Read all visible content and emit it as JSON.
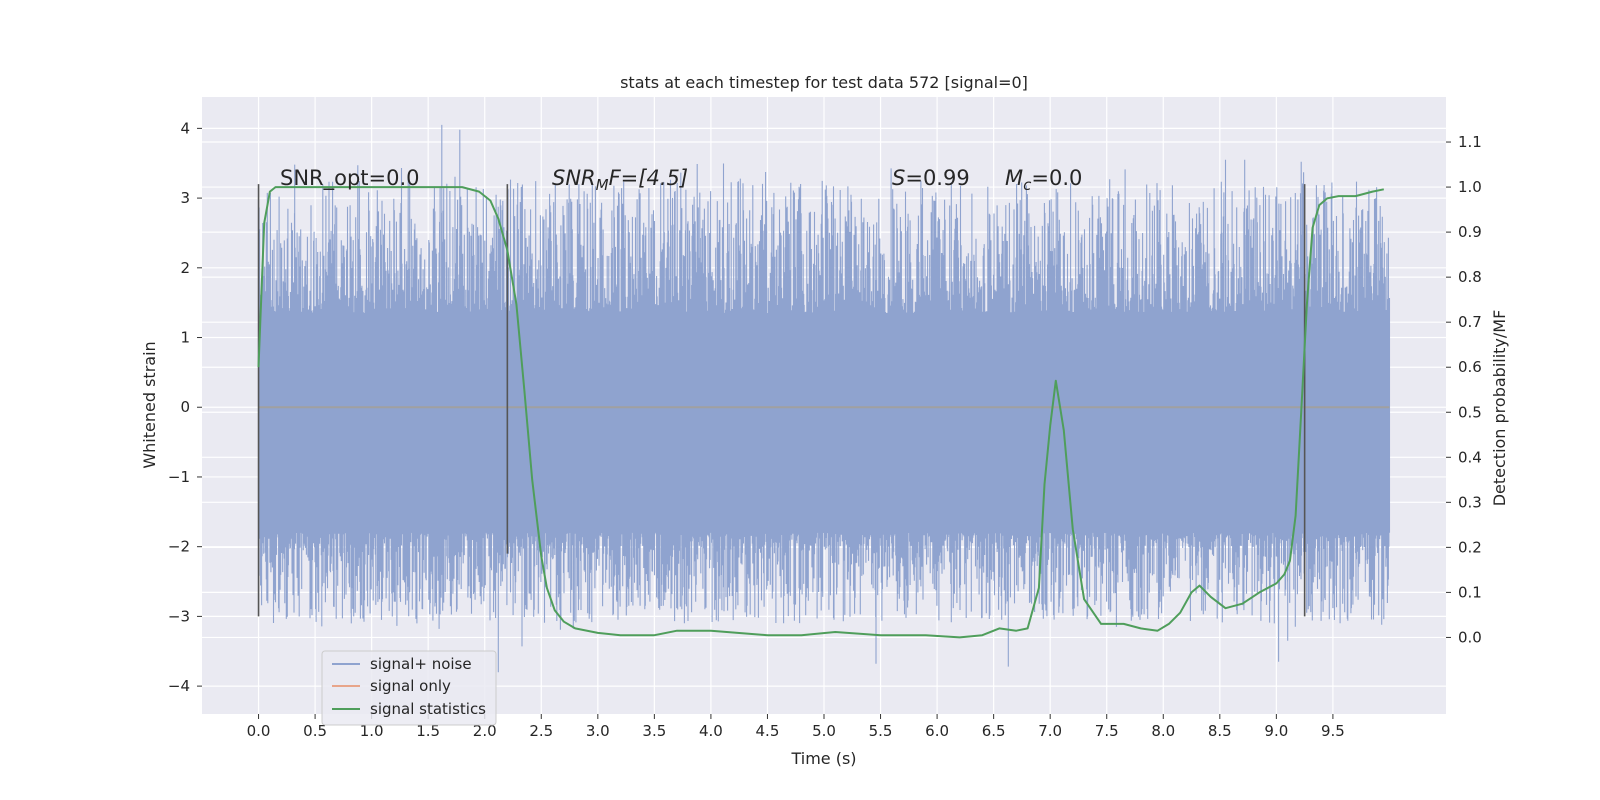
{
  "chart_data": {
    "type": "line",
    "title": "stats at each timestep for test data 572 [signal=0]",
    "xlabel": "Time (s)",
    "ylabel": "Whitened strain",
    "ylabel_right": "Detection probability/MF",
    "xlim": [
      -0.5,
      10.5
    ],
    "ylim": [
      -4.4,
      4.45
    ],
    "ylim_right": [
      -0.17,
      1.2
    ],
    "x_ticks": [
      0.0,
      0.5,
      1.0,
      1.5,
      2.0,
      2.5,
      3.0,
      3.5,
      4.0,
      4.5,
      5.0,
      5.5,
      6.0,
      6.5,
      7.0,
      7.5,
      8.0,
      8.5,
      9.0,
      9.5
    ],
    "x_tick_labels": [
      "0.0",
      "0.5",
      "1.0",
      "1.5",
      "2.0",
      "2.5",
      "3.0",
      "3.5",
      "4.0",
      "4.5",
      "5.0",
      "5.5",
      "6.0",
      "6.5",
      "7.0",
      "7.5",
      "8.0",
      "8.5",
      "9.0",
      "9.5"
    ],
    "y_ticks": [
      4,
      3,
      2,
      1,
      0,
      -1,
      -2,
      -3,
      -4
    ],
    "y_tick_labels": [
      "4",
      "3",
      "2",
      "1",
      "0",
      "−1",
      "−2",
      "−3",
      "−4"
    ],
    "y_right_ticks": [
      1.1,
      1.0,
      0.9,
      0.8,
      0.7,
      0.6,
      0.5,
      0.4,
      0.3,
      0.2,
      0.1,
      0.0
    ],
    "y_right_tick_labels": [
      "1.1",
      "1.0",
      "0.9",
      "0.8",
      "0.7",
      "0.6",
      "0.5",
      "0.4",
      "0.3",
      "0.2",
      "0.1",
      "0.0"
    ],
    "grid": true,
    "legend": {
      "placement": "lower-left",
      "entries": [
        {
          "label": "signal+ noise",
          "color": "#8fa3cf"
        },
        {
          "label": "signal only",
          "color": "#e8a58a"
        },
        {
          "label": "signal statistics",
          "color": "#4f9e5b"
        }
      ]
    },
    "annotations": {
      "snr_opt": "SNR_opt=0.0",
      "snr_mf_main": "SNR",
      "snr_mf_sub": "M",
      "snr_mf_rest": "F=[4.5]",
      "s_var": "S",
      "s_rest": "=0.99",
      "mc_var": "M",
      "mc_sub": "c",
      "mc_rest": "=0.0"
    },
    "vertical_markers": [
      {
        "x": 0.0,
        "y_from": -3.0,
        "y_to": 3.2
      },
      {
        "x": 2.2,
        "y_from": -2.1,
        "y_to": 3.2
      },
      {
        "x": 9.25,
        "y_from": -3.0,
        "y_to": 3.2
      }
    ],
    "noise_series": {
      "name": "signal+ noise",
      "color": "#8fa3cf",
      "x_range": [
        0.0,
        10.0
      ],
      "core_band": [
        -1.8,
        1.35
      ],
      "extreme_peaks": [
        {
          "x": 0.32,
          "y": 3.48
        },
        {
          "x": 1.62,
          "y": 4.05
        },
        {
          "x": 1.78,
          "y": 3.98
        },
        {
          "x": 2.33,
          "y": -3.43
        },
        {
          "x": 2.12,
          "y": -3.8
        },
        {
          "x": 4.26,
          "y": 3.28
        },
        {
          "x": 5.46,
          "y": -3.68
        },
        {
          "x": 6.63,
          "y": -3.72
        },
        {
          "x": 8.55,
          "y": 3.55
        },
        {
          "x": 8.72,
          "y": 3.55
        },
        {
          "x": 9.02,
          "y": -3.65
        },
        {
          "x": 9.1,
          "y": -3.35
        },
        {
          "x": 9.22,
          "y": 3.52
        },
        {
          "x": 0.82,
          "y": -3.1
        },
        {
          "x": 1.4,
          "y": -3.1
        }
      ]
    },
    "series": [
      {
        "name": "signal statistics",
        "color": "#4f9e5b",
        "axis": "right",
        "x": [
          0.0,
          0.05,
          0.1,
          0.15,
          0.25,
          0.4,
          0.6,
          1.0,
          1.5,
          1.8,
          1.95,
          2.05,
          2.12,
          2.2,
          2.28,
          2.35,
          2.42,
          2.5,
          2.55,
          2.62,
          2.7,
          2.8,
          3.0,
          3.2,
          3.5,
          3.7,
          4.0,
          4.5,
          4.8,
          5.1,
          5.5,
          5.9,
          6.2,
          6.4,
          6.55,
          6.7,
          6.8,
          6.9,
          6.95,
          7.0,
          7.05,
          7.12,
          7.2,
          7.3,
          7.45,
          7.65,
          7.8,
          7.95,
          8.05,
          8.15,
          8.25,
          8.32,
          8.42,
          8.55,
          8.7,
          8.85,
          9.0,
          9.07,
          9.12,
          9.17,
          9.22,
          9.27,
          9.32,
          9.38,
          9.45,
          9.55,
          9.7,
          9.85,
          9.95
        ],
        "y": [
          0.6,
          0.92,
          0.99,
          1.0,
          1.0,
          1.0,
          1.0,
          1.0,
          1.0,
          1.0,
          0.99,
          0.97,
          0.93,
          0.86,
          0.74,
          0.55,
          0.35,
          0.18,
          0.11,
          0.06,
          0.035,
          0.02,
          0.01,
          0.005,
          0.005,
          0.015,
          0.015,
          0.005,
          0.005,
          0.012,
          0.005,
          0.005,
          0.0,
          0.005,
          0.02,
          0.015,
          0.02,
          0.11,
          0.34,
          0.47,
          0.57,
          0.46,
          0.24,
          0.085,
          0.03,
          0.03,
          0.02,
          0.015,
          0.03,
          0.055,
          0.1,
          0.115,
          0.09,
          0.065,
          0.075,
          0.1,
          0.12,
          0.14,
          0.17,
          0.27,
          0.5,
          0.74,
          0.91,
          0.96,
          0.975,
          0.98,
          0.98,
          0.99,
          0.995
        ]
      },
      {
        "name": "signal only",
        "color": "#e8a58a",
        "axis": "left",
        "x": [
          0.0,
          10.0
        ],
        "y": [
          0.0,
          0.0
        ]
      }
    ]
  }
}
